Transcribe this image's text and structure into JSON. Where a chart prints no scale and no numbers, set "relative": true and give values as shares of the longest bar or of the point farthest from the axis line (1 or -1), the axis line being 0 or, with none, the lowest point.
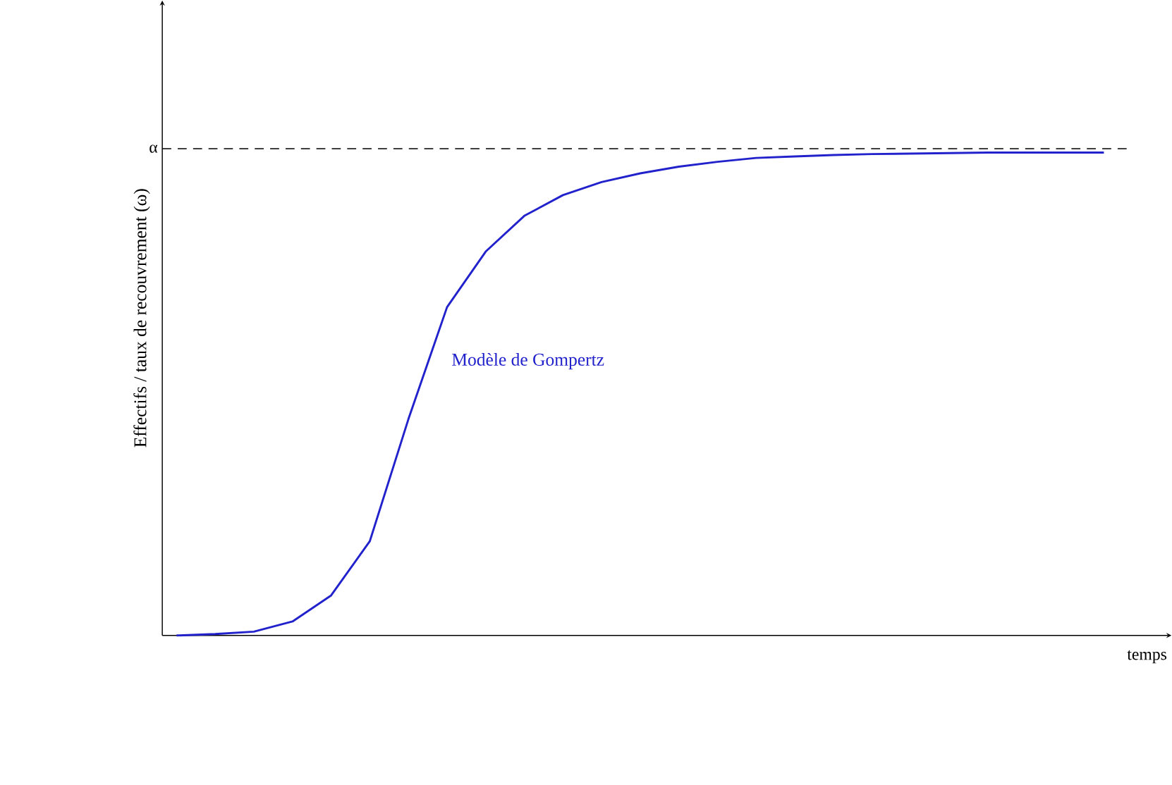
{
  "chart_data": {
    "type": "line",
    "relative": true,
    "xlabel": "temps",
    "ylabel": "Effectifs / taux de recouvrement (ω)",
    "categories": [
      null,
      null,
      null,
      null,
      null,
      null,
      null,
      null,
      null,
      null,
      null,
      null,
      null,
      null,
      null,
      null,
      null,
      null,
      null,
      null,
      null,
      null,
      null,
      null,
      null
    ],
    "series": [
      {
        "name": "Modèle de Gompertz",
        "color": "#2222cc",
        "values": [
          0,
          0.003,
          0.008,
          0.029,
          0.083,
          0.195,
          0.448,
          0.68,
          0.795,
          0.869,
          0.912,
          0.939,
          0.957,
          0.971,
          0.981,
          0.989,
          0.992,
          0.995,
          0.997,
          0.998,
          0.999,
          1,
          1,
          1,
          1
        ]
      }
    ],
    "ref_lines": [
      {
        "axis": "y",
        "value": 1.008,
        "label": "α",
        "color": "#000000",
        "line_style": "dashed"
      }
    ]
  }
}
